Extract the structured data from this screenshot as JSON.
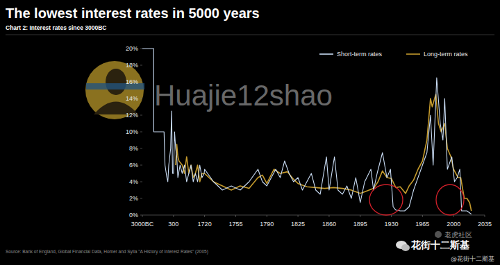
{
  "chart_data": {
    "type": "line",
    "title": "The lowest interest rates in 5000 years",
    "subtitle": "Chart 2: Interest rates since 3000BC",
    "source": "Source: Bank of England, Global Financial Data, Homer and Sylla \"A History of Interest Rates\" (2005)",
    "annotations": [
      "Huajie12shao",
      "老虎社区",
      "花街十二斯基",
      "@花街十二斯基"
    ],
    "legend": "top-right",
    "grid": false,
    "xlim": [
      -3000,
      2035
    ],
    "xticks": [
      {
        "value": -3000,
        "label": "3000BC"
      },
      300,
      1720,
      1755,
      1790,
      1825,
      1860,
      1895,
      1930,
      1965,
      2000,
      2035
    ],
    "ylim": [
      0,
      20
    ],
    "yticks": [
      {
        "value": 0,
        "label": "0%"
      },
      {
        "value": 2,
        "label": "2%"
      },
      {
        "value": 4,
        "label": "4%"
      },
      {
        "value": 6,
        "label": "6%"
      },
      {
        "value": 8,
        "label": "8%"
      },
      {
        "value": 10,
        "label": "10%"
      },
      {
        "value": 12,
        "label": "12%"
      },
      {
        "value": 14,
        "label": "14%"
      },
      {
        "value": 16,
        "label": "16%"
      },
      {
        "value": 18,
        "label": "18%"
      },
      {
        "value": 20,
        "label": "20%"
      }
    ],
    "series": [
      {
        "name": "Short-term rates",
        "color": "#c9dcf4",
        "x": [
          -3000,
          -1800,
          -1790,
          -700,
          -600,
          -400,
          -300,
          -200,
          0,
          100,
          200,
          300,
          350,
          400,
          450,
          500,
          600,
          700,
          800,
          900,
          1000,
          1100,
          1200,
          1300,
          1400,
          1500,
          1600,
          1700,
          1720,
          1730,
          1740,
          1750,
          1760,
          1770,
          1780,
          1785,
          1790,
          1800,
          1805,
          1810,
          1815,
          1820,
          1825,
          1830,
          1840,
          1845,
          1850,
          1857,
          1860,
          1866,
          1870,
          1875,
          1880,
          1885,
          1890,
          1895,
          1900,
          1907,
          1910,
          1914,
          1920,
          1925,
          1929,
          1932,
          1935,
          1940,
          1945,
          1950,
          1955,
          1960,
          1965,
          1970,
          1974,
          1977,
          1981,
          1985,
          1988,
          1990,
          1993,
          1998,
          2001,
          2004,
          2007,
          2009,
          2015,
          2020
        ],
        "values": [
          20,
          20,
          10,
          10,
          6,
          4.5,
          4,
          6,
          8,
          12.5,
          5,
          5,
          10,
          8,
          7,
          4.5,
          6,
          5,
          6,
          4,
          5,
          6,
          4,
          5,
          4,
          6,
          4.5,
          5,
          5.5,
          4,
          3,
          3.5,
          3,
          4,
          5.5,
          4,
          3.5,
          5.5,
          4.5,
          6.5,
          5,
          4,
          4.5,
          3,
          5,
          3,
          2.5,
          7,
          3,
          7,
          3,
          2.5,
          3.5,
          2,
          4.5,
          1.5,
          4,
          5.5,
          3,
          5,
          7.5,
          4.5,
          5.5,
          1,
          0.6,
          0.5,
          0.5,
          1,
          3,
          4.5,
          6,
          7.5,
          12,
          6,
          16.5,
          11,
          9,
          14,
          5.5,
          7,
          4,
          4.5,
          5.5,
          0.5,
          0.5,
          0.1
        ]
      },
      {
        "name": "Long-term rates",
        "color": "#c49a2c",
        "x": [
          400,
          450,
          500,
          550,
          700,
          800,
          900,
          1000,
          1100,
          1200,
          1300,
          1400,
          1500,
          1600,
          1700,
          1720,
          1730,
          1740,
          1750,
          1760,
          1770,
          1780,
          1785,
          1790,
          1798,
          1805,
          1813,
          1820,
          1825,
          1835,
          1845,
          1855,
          1865,
          1875,
          1885,
          1895,
          1900,
          1910,
          1915,
          1920,
          1925,
          1930,
          1935,
          1940,
          1946,
          1950,
          1955,
          1960,
          1965,
          1970,
          1974,
          1976,
          1980,
          1983,
          1986,
          1990,
          1993,
          1997,
          2000,
          2005,
          2008,
          2012,
          2015,
          2018,
          2020
        ],
        "values": [
          6,
          8.5,
          7,
          6.5,
          6,
          5,
          7,
          5,
          6,
          4.5,
          5,
          6,
          4,
          5,
          5,
          5,
          4,
          3.5,
          3,
          3.5,
          3.2,
          4.5,
          4.8,
          3.8,
          5.5,
          5,
          5.2,
          4.3,
          3.8,
          3.4,
          3.3,
          3.2,
          3.3,
          3.2,
          3,
          2.6,
          2.8,
          3.2,
          4,
          5.3,
          4.5,
          4.4,
          3.3,
          3.4,
          2.6,
          3.5,
          4.2,
          5.5,
          6.5,
          9,
          14,
          13,
          14.5,
          11,
          10,
          11,
          8,
          7,
          5.5,
          4.5,
          4.5,
          2,
          2,
          1.5,
          0.5
        ]
      }
    ]
  }
}
